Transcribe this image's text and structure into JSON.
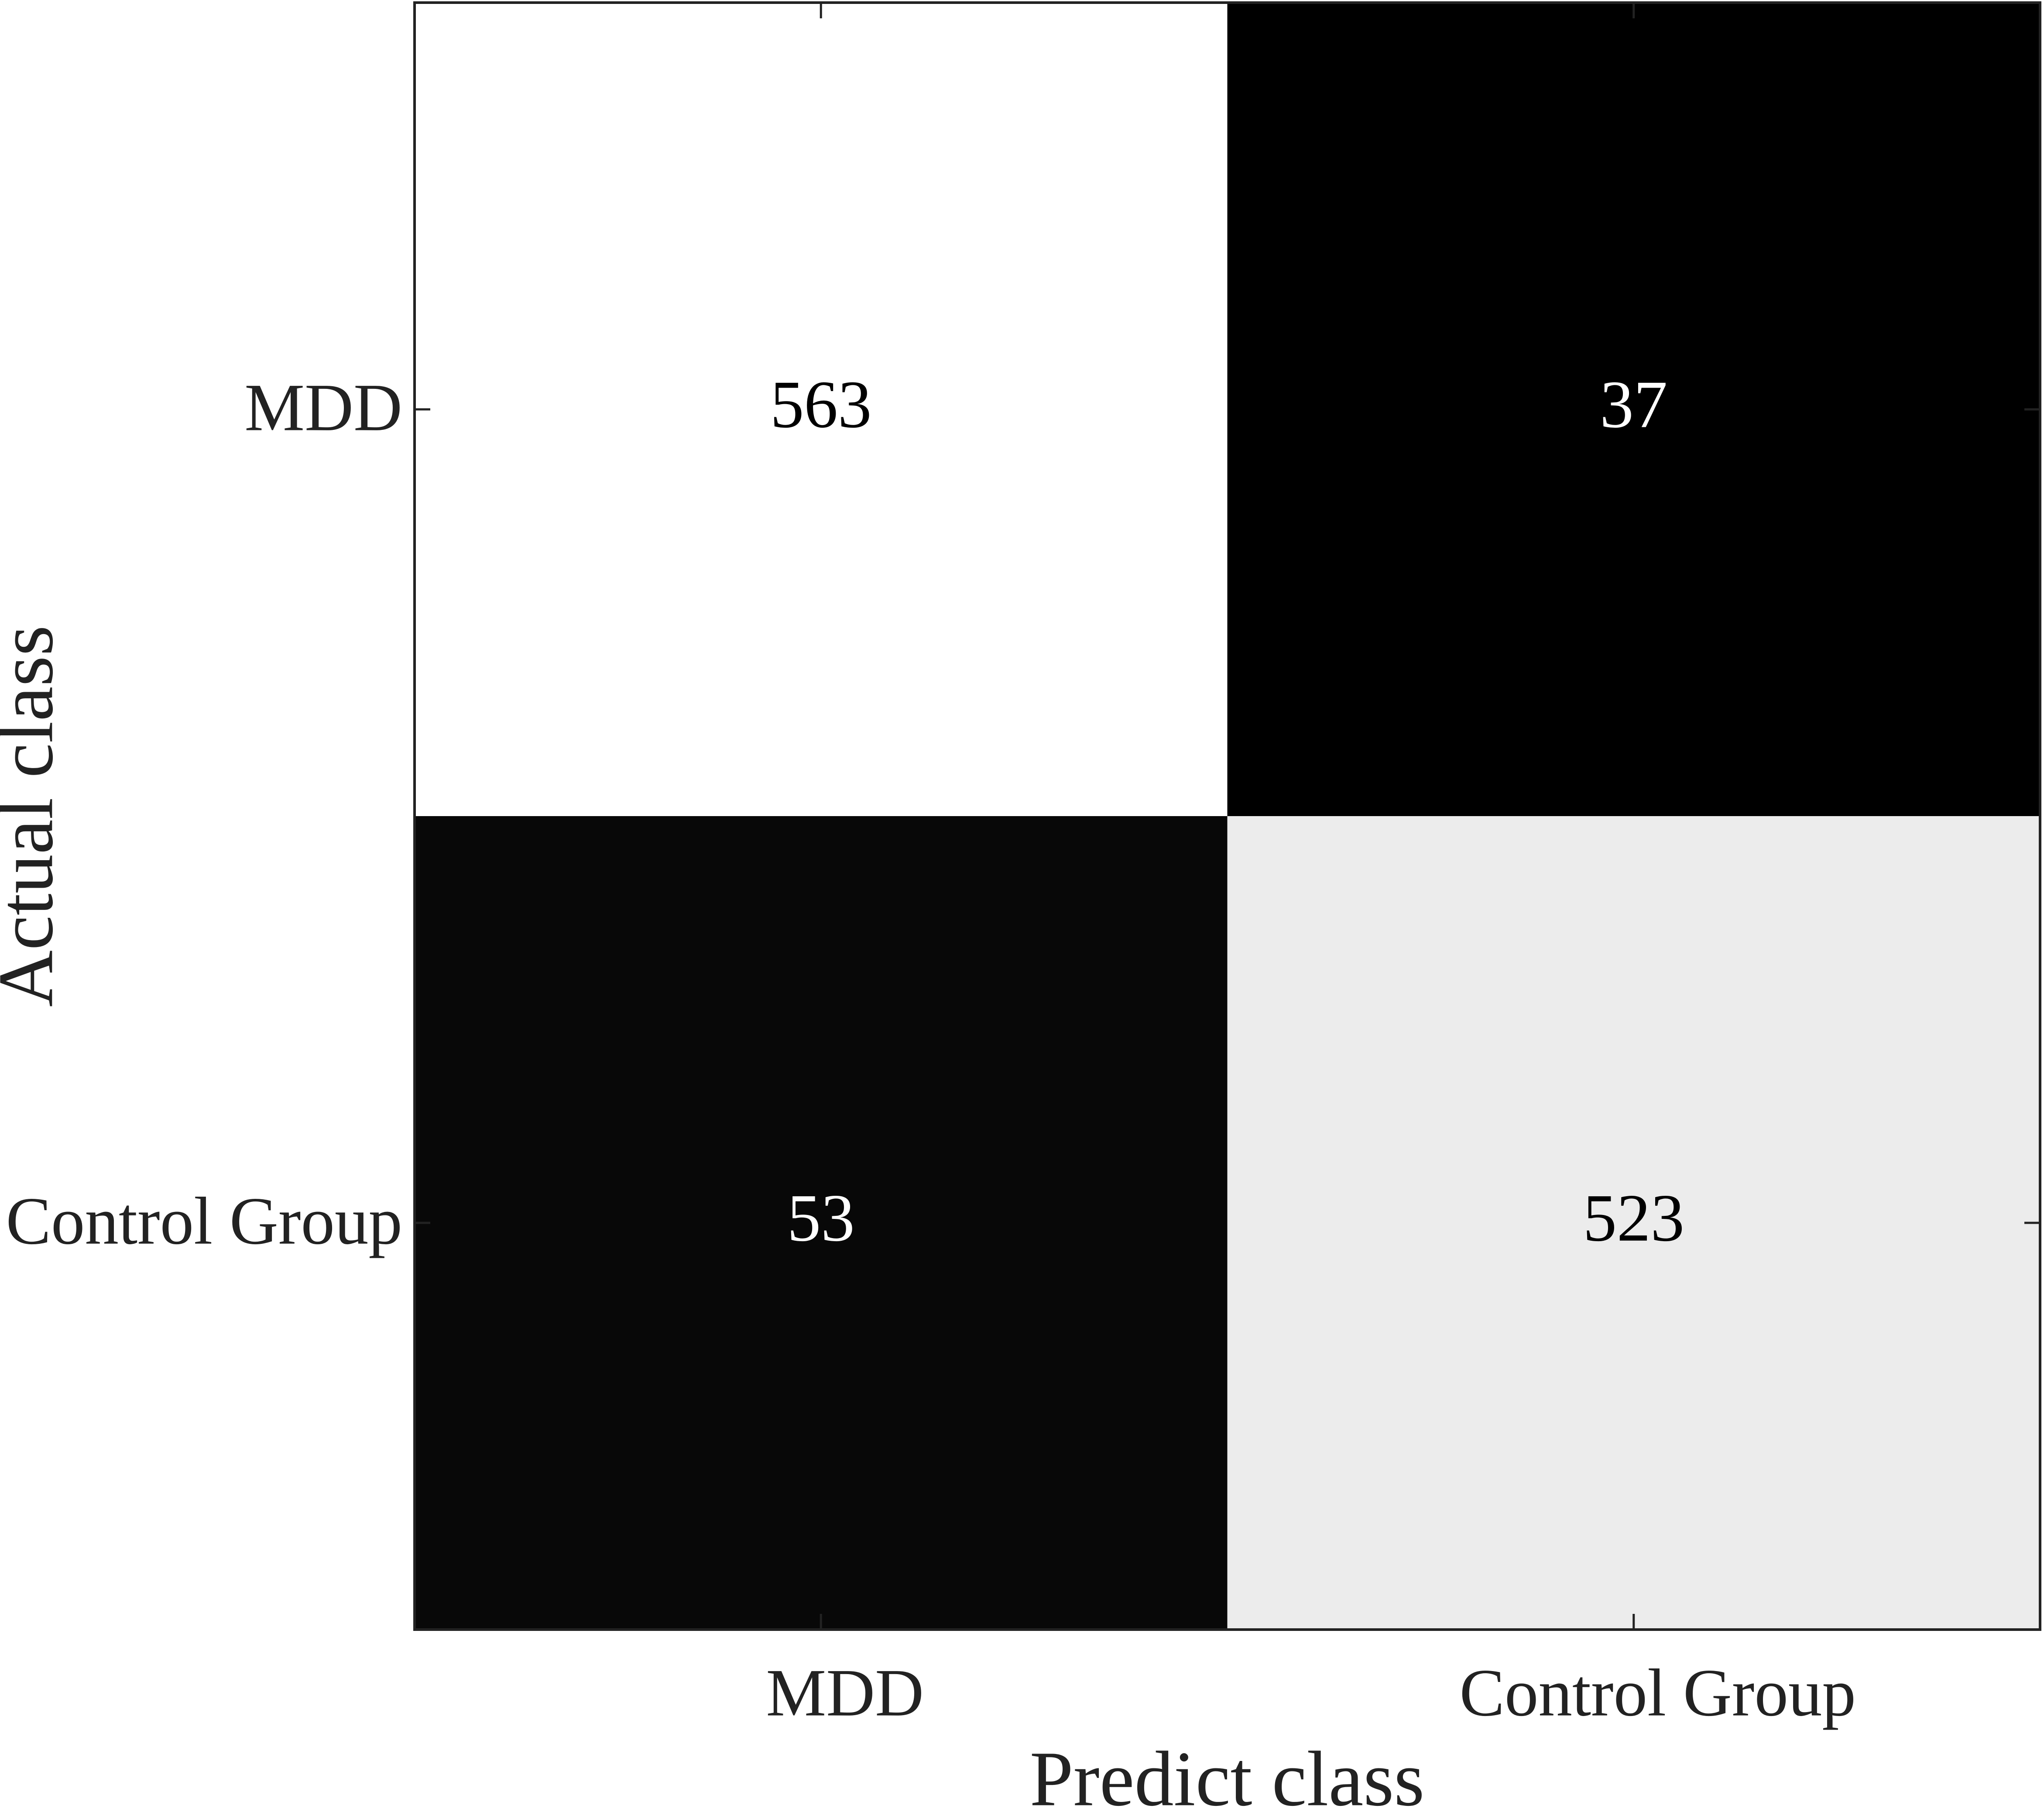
{
  "chart_data": {
    "type": "heatmap",
    "x_categories": [
      "MDD",
      "Control Group"
    ],
    "y_categories": [
      "MDD",
      "Control Group"
    ],
    "values": [
      [
        563,
        37
      ],
      [
        53,
        523
      ]
    ],
    "xlabel": "Predict class",
    "ylabel": "Actual class",
    "colormap": [
      "#000000",
      "#ffffff"
    ]
  }
}
